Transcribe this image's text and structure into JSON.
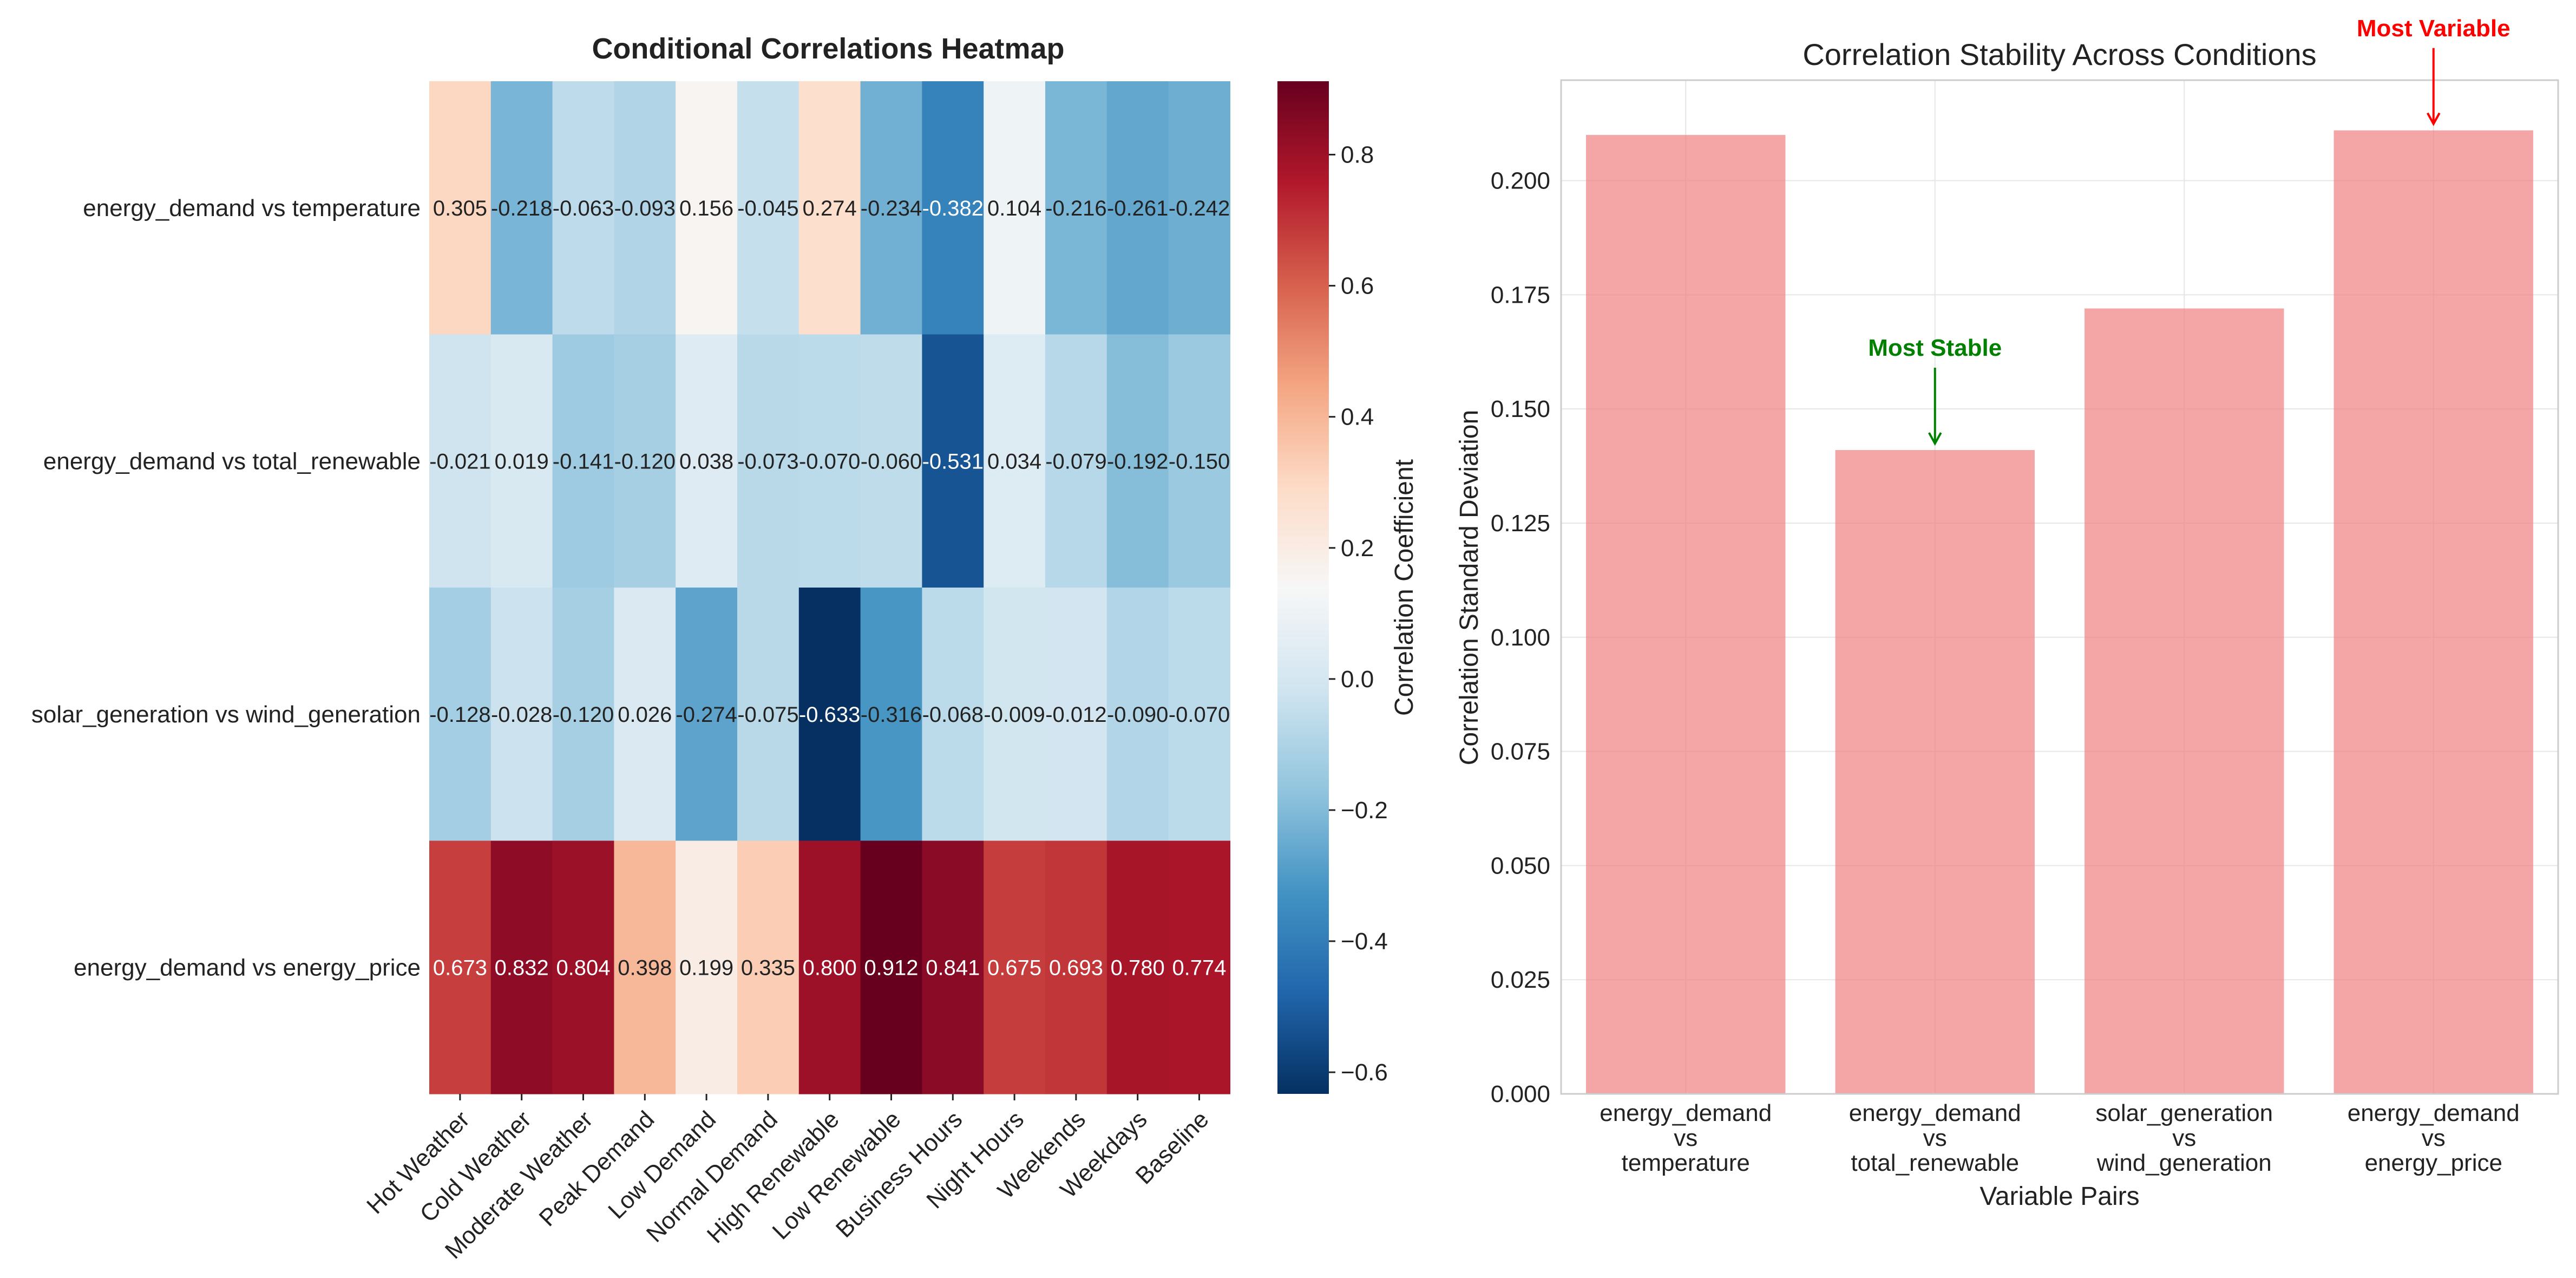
{
  "chart_data": [
    {
      "type": "heatmap",
      "title": "Conditional Correlations Heatmap",
      "rows": [
        "energy_demand vs temperature",
        "energy_demand vs total_renewable",
        "solar_generation vs wind_generation",
        "energy_demand vs energy_price"
      ],
      "columns": [
        "Hot Weather",
        "Cold Weather",
        "Moderate Weather",
        "Peak Demand",
        "Low Demand",
        "Normal Demand",
        "High Renewable",
        "Low Renewable",
        "Business Hours",
        "Night Hours",
        "Weekends",
        "Weekdays",
        "Baseline"
      ],
      "values": [
        [
          0.305,
          -0.218,
          -0.063,
          -0.093,
          0.156,
          -0.045,
          0.274,
          -0.234,
          -0.382,
          0.104,
          -0.216,
          -0.261,
          -0.242
        ],
        [
          -0.021,
          0.019,
          -0.141,
          -0.12,
          0.038,
          -0.073,
          -0.07,
          -0.06,
          -0.531,
          0.034,
          -0.079,
          -0.192,
          -0.15
        ],
        [
          -0.128,
          -0.028,
          -0.12,
          0.026,
          -0.274,
          -0.075,
          -0.633,
          -0.316,
          -0.068,
          -0.009,
          -0.012,
          -0.09,
          -0.07
        ]
      ],
      "values_row4": [
        0.673,
        0.832,
        0.804,
        0.398,
        0.199,
        0.335,
        0.8,
        0.912,
        0.841,
        0.675,
        0.693,
        0.78,
        0.774
      ],
      "cell_labels": [
        [
          "0.305",
          "-0.218",
          "-0.063",
          "-0.093",
          "0.156",
          "-0.045",
          "0.274",
          "-0.234",
          "-0.382",
          "0.104",
          "-0.216",
          "-0.261",
          "-0.242"
        ],
        [
          "-0.021",
          "0.019",
          "-0.141",
          "-0.120",
          "0.038",
          "-0.073",
          "-0.070",
          "-0.060",
          "-0.531",
          "0.034",
          "-0.079",
          "-0.192",
          "-0.150"
        ],
        [
          "-0.128",
          "-0.028",
          "-0.120",
          "0.026",
          "-0.274",
          "-0.075",
          "-0.633",
          "-0.316",
          "-0.068",
          "-0.009",
          "-0.012",
          "-0.090",
          "-0.070"
        ],
        [
          "0.673",
          "0.832",
          "0.804",
          "0.398",
          "0.199",
          "0.335",
          "0.800",
          "0.912",
          "0.841",
          "0.675",
          "0.693",
          "0.780",
          "0.774"
        ]
      ],
      "colorbar": {
        "label": "Correlation Coefficient",
        "range": [
          -0.633,
          0.912
        ],
        "ticks": [
          -0.6,
          -0.4,
          -0.2,
          0.0,
          0.2,
          0.4,
          0.6,
          0.8
        ],
        "tick_labels": [
          "−0.6",
          "−0.4",
          "−0.2",
          "0.0",
          "0.2",
          "0.4",
          "0.6",
          "0.8"
        ],
        "colormap": "RdBu_r"
      }
    },
    {
      "type": "bar",
      "title": "Correlation Stability Across Conditions",
      "xlabel": "Variable Pairs",
      "ylabel": "Correlation Standard Deviation",
      "categories": [
        [
          "energy_demand",
          "vs",
          "temperature"
        ],
        [
          "energy_demand",
          "vs",
          "total_renewable"
        ],
        [
          "solar_generation",
          "vs",
          "wind_generation"
        ],
        [
          "energy_demand",
          "vs",
          "energy_price"
        ]
      ],
      "values": [
        0.21,
        0.141,
        0.172,
        0.211
      ],
      "ylim": [
        0,
        0.222
      ],
      "yticks": [
        0.0,
        0.025,
        0.05,
        0.075,
        0.1,
        0.125,
        0.15,
        0.175,
        0.2
      ],
      "ytick_labels": [
        "0.000",
        "0.025",
        "0.050",
        "0.075",
        "0.100",
        "0.125",
        "0.150",
        "0.175",
        "0.200"
      ],
      "grid": true,
      "bar_color": "#f08080",
      "annotations": [
        {
          "text": "Most Stable",
          "category_index": 1,
          "color": "#008000"
        },
        {
          "text": "Most Variable",
          "category_index": 3,
          "color": "#ff0000"
        }
      ]
    }
  ]
}
